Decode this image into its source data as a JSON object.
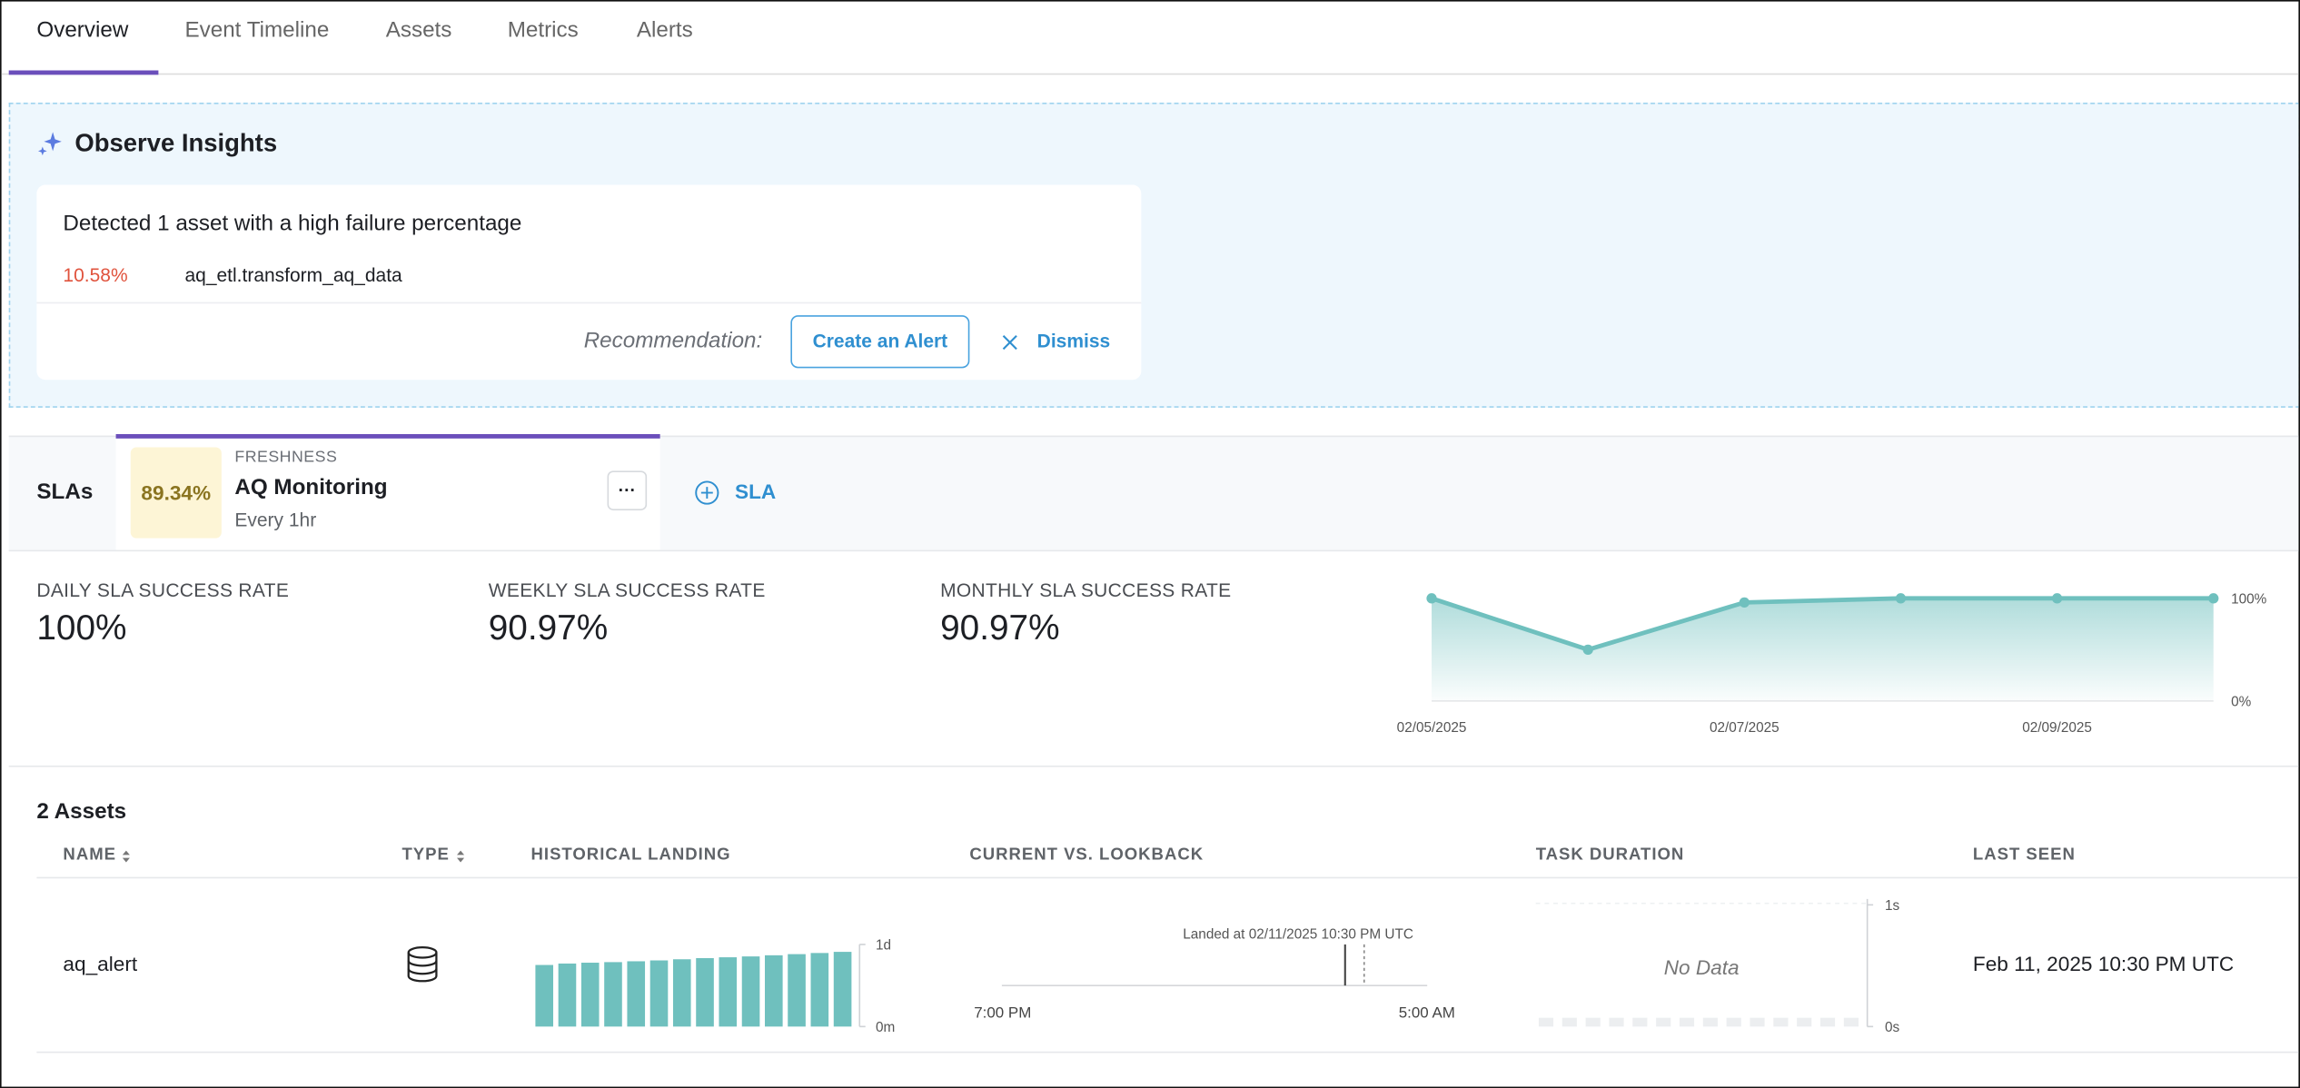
{
  "tabs": [
    "Overview",
    "Event Timeline",
    "Assets",
    "Metrics",
    "Alerts"
  ],
  "insights": {
    "title": "Observe Insights",
    "message": "Detected 1 asset with a high failure percentage",
    "percentage": "10.58%",
    "asset": "aq_etl.transform_aq_data",
    "recommendation": "Recommendation:",
    "create_alert": "Create an Alert",
    "dismiss": "Dismiss"
  },
  "slas": {
    "label": "SLAs",
    "card": {
      "score": "89.34%",
      "kind": "FRESHNESS",
      "name": "AQ Monitoring",
      "schedule": "Every 1hr",
      "menu": "···"
    },
    "add": "SLA"
  },
  "rates": [
    {
      "label": "DAILY SLA SUCCESS RATE",
      "value": "100%"
    },
    {
      "label": "WEEKLY SLA SUCCESS RATE",
      "value": "90.97%"
    },
    {
      "label": "MONTHLY SLA SUCCESS RATE",
      "value": "90.97%"
    }
  ],
  "table": {
    "title": "2 Assets",
    "headers": [
      "NAME",
      "TYPE",
      "HISTORICAL LANDING",
      "CURRENT VS. LOOKBACK",
      "TASK DURATION",
      "LAST SEEN"
    ],
    "rows": [
      {
        "name": "aq_alert",
        "last_seen": "Feb 11, 2025 10:30 PM UTC",
        "lookback": {
          "annotation": "Landed at 02/11/2025 10:30 PM UTC",
          "x_labels": [
            "7:00 PM",
            "5:00 AM"
          ]
        }
      }
    ]
  },
  "chart_data": [
    {
      "type": "line",
      "categories": [
        "02/05/2025",
        null,
        "02/07/2025",
        null,
        "02/09/2025",
        null
      ],
      "values": [
        100,
        50,
        96,
        100,
        100,
        100
      ],
      "color": "#6fc0be",
      "ylim": [
        0,
        100
      ],
      "yticks": [
        {
          "value": 0,
          "label": "0%"
        },
        {
          "value": 100,
          "label": "100%"
        }
      ]
    },
    {
      "type": "bar",
      "values": [
        1080,
        1105,
        1120,
        1130,
        1145,
        1160,
        1180,
        1200,
        1215,
        1230,
        1250,
        1270,
        1290,
        1310
      ],
      "color": "#6fc0be",
      "ylim": [
        0,
        1440
      ],
      "yticks": [
        {
          "value": 0,
          "label": "0m"
        },
        {
          "value": 1440,
          "label": "1d"
        }
      ]
    },
    {
      "type": "bar",
      "annotation": "No Data",
      "ylim": [
        0,
        1
      ],
      "yticks": [
        {
          "value": 0,
          "label": "0s"
        },
        {
          "value": 1,
          "label": "1s"
        }
      ]
    }
  ]
}
